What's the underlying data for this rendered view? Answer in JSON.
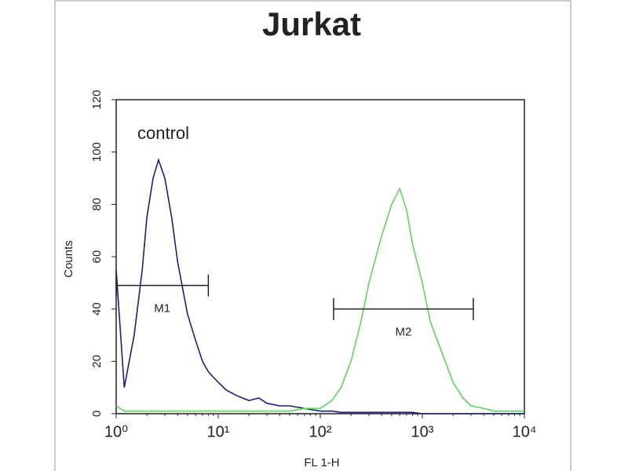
{
  "chart_data": {
    "type": "line",
    "title": "Jurkat",
    "xlabel": "FL 1-H",
    "ylabel": "Counts",
    "xscale": "log",
    "x": [
      1,
      1.2,
      1.5,
      1.8,
      2,
      2.3,
      2.6,
      3,
      3.5,
      4,
      5,
      6,
      7,
      8,
      10,
      12,
      15,
      20,
      25,
      30,
      40,
      50,
      70,
      100,
      130,
      160,
      200,
      250,
      300,
      400,
      500,
      600,
      700,
      800,
      1000,
      1200,
      1500,
      2000,
      2500,
      3000,
      4000,
      5000,
      7000,
      10000
    ],
    "series": [
      {
        "name": "control",
        "color": "#1c1f7a",
        "values": [
          55,
          10,
          30,
          55,
          75,
          90,
          97,
          90,
          75,
          58,
          38,
          28,
          20,
          16,
          12,
          9,
          7,
          5,
          6,
          4,
          3,
          3,
          2,
          1,
          1,
          0.5,
          0.5,
          0.5,
          0.5,
          0.5,
          0.5,
          0.5,
          0.5,
          0.5,
          0,
          0,
          0,
          0,
          0,
          0,
          0,
          0,
          0,
          0
        ]
      },
      {
        "color": "#5ed35e",
        "values": [
          3,
          1,
          1,
          1,
          1,
          1,
          1,
          1,
          1,
          1,
          1,
          1,
          1,
          1,
          1,
          1,
          1,
          1,
          1,
          1,
          1,
          1,
          2,
          2,
          5,
          10,
          20,
          35,
          50,
          68,
          80,
          86,
          78,
          65,
          50,
          35,
          25,
          12,
          6,
          3,
          2,
          1,
          1,
          1
        ]
      }
    ],
    "markers": [
      {
        "label": "M1",
        "x": [
          1,
          8
        ],
        "y": 49
      },
      {
        "label": "M2",
        "x": [
          135,
          3160
        ],
        "y": 40
      }
    ],
    "xlim": [
      1,
      10000
    ],
    "xticks": [
      {
        "value": 1,
        "label": "10⁰"
      },
      {
        "value": 10,
        "label": "10¹"
      },
      {
        "value": 100,
        "label": "10²"
      },
      {
        "value": 1000,
        "label": "10³"
      },
      {
        "value": 10000,
        "label": "10⁴"
      }
    ],
    "ylim": [
      0,
      120
    ],
    "yticks": [
      0,
      20,
      40,
      60,
      80,
      100,
      120
    ]
  }
}
